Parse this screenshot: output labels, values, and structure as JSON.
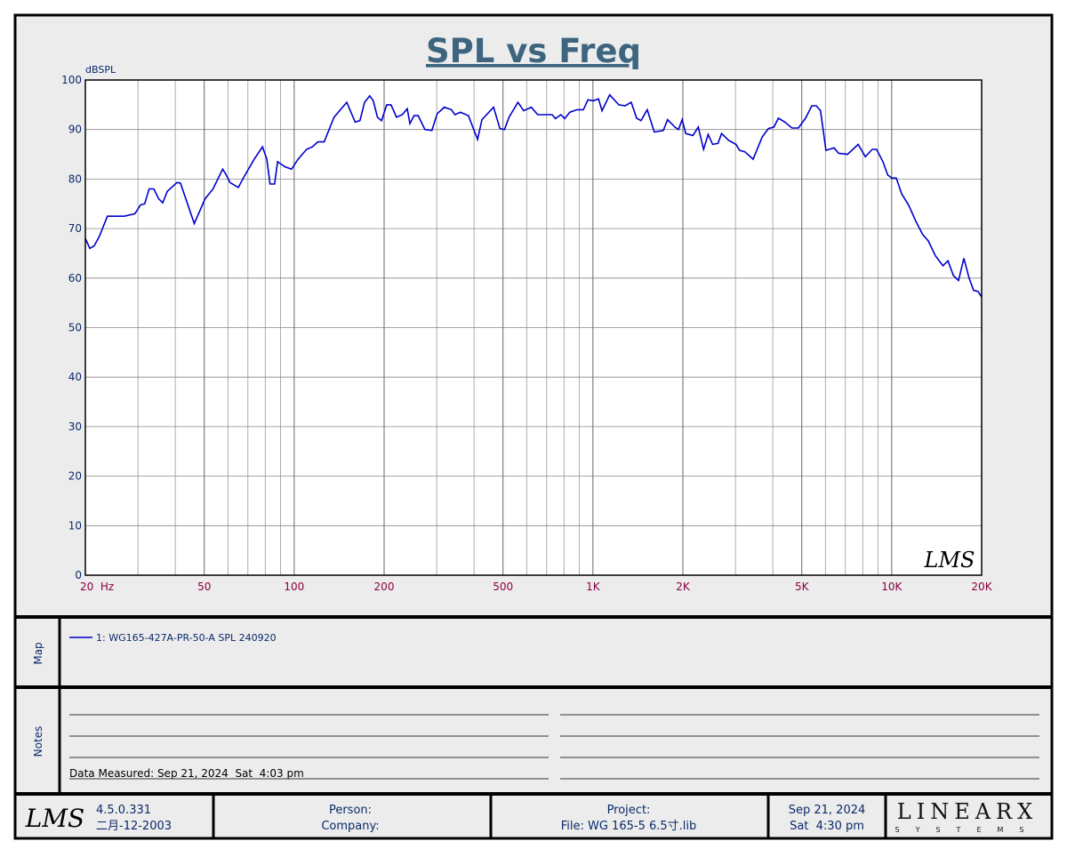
{
  "chart_data": {
    "type": "line",
    "title": "SPL vs Freq",
    "y_label": "dBSPL",
    "log_x": true,
    "grid": true,
    "xlim": [
      20,
      20000
    ],
    "ylim": [
      0,
      100
    ],
    "xticks": [
      {
        "value": 20,
        "label": "20  Hz"
      },
      50,
      100,
      200,
      500,
      {
        "value": 1000,
        "label": "1K"
      },
      {
        "value": 2000,
        "label": "2K"
      },
      {
        "value": 5000,
        "label": "5K"
      },
      {
        "value": 10000,
        "label": "10K"
      },
      {
        "value": 20000,
        "label": "20K"
      }
    ],
    "x_minor_ticks": [
      30,
      40,
      60,
      70,
      80,
      90,
      300,
      400,
      600,
      700,
      800,
      900,
      3000,
      4000,
      6000,
      7000,
      8000,
      9000
    ],
    "yticks": [
      0,
      10,
      20,
      30,
      40,
      50,
      60,
      70,
      80,
      90,
      100
    ],
    "x": [
      20,
      20.7,
      21.4,
      22.3,
      23.7,
      27,
      29.3,
      30.6,
      31.6,
      32.7,
      33.9,
      35.2,
      36.3,
      37.6,
      40.5,
      41.6,
      46.3,
      50.3,
      53.5,
      57.6,
      59,
      61,
      65,
      68,
      73.5,
      78.3,
      81,
      83,
      86,
      88,
      93,
      98,
      103,
      110,
      115,
      120,
      126,
      136,
      150,
      160,
      166,
      172,
      179,
      184,
      190,
      196,
      204,
      211,
      220,
      230,
      239,
      244,
      252,
      260,
      274,
      289,
      301,
      318,
      336,
      345,
      360,
      383,
      411,
      425,
      465,
      488,
      506,
      524,
      561,
      586,
      622,
      653,
      690,
      730,
      749,
      781,
      804,
      837,
      885,
      929,
      962,
      1003,
      1044,
      1073,
      1138,
      1221,
      1281,
      1343,
      1400,
      1448,
      1519,
      1605,
      1720,
      1778,
      1880,
      1934,
      1989,
      2045,
      2161,
      2252,
      2347,
      2430,
      2516,
      2621,
      2694,
      2848,
      3011,
      3094,
      3226,
      3437,
      3685,
      3868,
      4034,
      4176,
      4385,
      4640,
      4871,
      5150,
      5402,
      5589,
      5778,
      6026,
      6410,
      6640,
      7110,
      7355,
      7720,
      8160,
      8610,
      8900,
      9350,
      9700,
      10000,
      10360,
      10800,
      11400,
      12040,
      12700,
      13260,
      14000,
      14840,
      15420,
      16100,
      16740,
      17440,
      18160,
      18800,
      19450,
      20000
    ],
    "series": [
      {
        "name": "1: WG165-427A-PR-50-A SPL 240920",
        "color": "#0000cc",
        "values": [
          68,
          66,
          66.5,
          68.5,
          72.5,
          72.5,
          73,
          74.8,
          75,
          78,
          78,
          76,
          75.2,
          77.5,
          79.3,
          79.2,
          71,
          76,
          78,
          82,
          81,
          79.3,
          78.3,
          80.5,
          84,
          86.5,
          84,
          79,
          79,
          83.5,
          82.5,
          82,
          84,
          86,
          86.5,
          87.5,
          87.5,
          92.5,
          95.5,
          91.5,
          91.8,
          95.5,
          96.8,
          95.8,
          92.5,
          91.8,
          95,
          95,
          92.5,
          93,
          94.2,
          91.2,
          92.8,
          92.8,
          90,
          89.8,
          93.2,
          94.5,
          94,
          93,
          93.5,
          92.8,
          88,
          92,
          94.5,
          90.2,
          90,
          92.5,
          95.5,
          93.8,
          94.5,
          93,
          93,
          93,
          92.2,
          93,
          92.2,
          93.5,
          94,
          94,
          96,
          95.8,
          96.2,
          93.8,
          97,
          95,
          94.8,
          95.5,
          92.3,
          91.8,
          94,
          89.5,
          89.8,
          92,
          90.5,
          90,
          92,
          89.2,
          88.8,
          90.5,
          86,
          89,
          87,
          87.2,
          89.2,
          87.8,
          87,
          85.8,
          85.5,
          84,
          88.5,
          90.2,
          90.5,
          92.3,
          91.5,
          90.3,
          90.3,
          92.3,
          94.8,
          94.8,
          93.8,
          85.8,
          86.3,
          85.2,
          85,
          85.8,
          87,
          84.5,
          86,
          86,
          83.5,
          80.8,
          80.2,
          80.2,
          77,
          74.7,
          71.5,
          68.8,
          67.5,
          64.5,
          62.5,
          63.5,
          60.5,
          59.5,
          64,
          60,
          57.5,
          57.3,
          56.2
        ]
      }
    ]
  },
  "watermark": "LMS",
  "map_panel": {
    "label": "Map"
  },
  "notes_panel": {
    "label": "Notes",
    "measured": "Data Measured: Sep 21, 2024  Sat  4:03 pm"
  },
  "footer": {
    "logo": "LMS",
    "version": "4.5.0.331",
    "build_date": "二月-12-2003",
    "person": "Person:",
    "company": "Company:",
    "project": "Project:",
    "file": "File: WG 165-5 6.5寸.lib",
    "date": "Sep 21, 2024",
    "time": "Sat  4:30 pm",
    "brand": "LINEARX",
    "brand_sub": "SYSTEMS"
  }
}
